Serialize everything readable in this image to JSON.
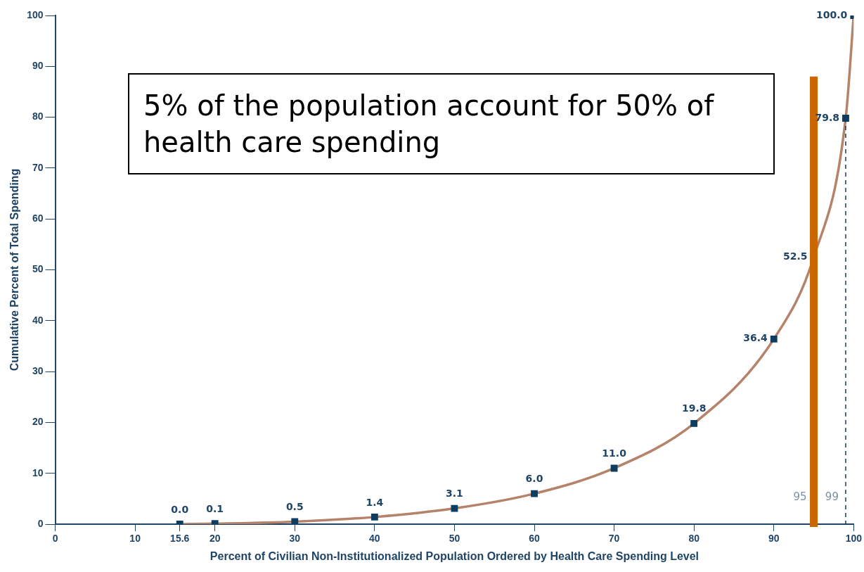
{
  "chart_data": {
    "type": "line",
    "xlabel": "Percent of Civilian Non-Institutionalized Population Ordered by Health Care Spending Level",
    "ylabel": "Cumulative Percent of Total Spending",
    "x": [
      15.6,
      20,
      30,
      40,
      50,
      60,
      70,
      80,
      90,
      95,
      99,
      100
    ],
    "series": [
      {
        "color": "#b5826a",
        "values": [
          0,
          0.1,
          0.5,
          1.4,
          3.1,
          6,
          11,
          19.8,
          36.4,
          52.5,
          79.8,
          100
        ],
        "value_labels": [
          "0.0",
          "0.1",
          "0.5",
          "1.4",
          "3.1",
          "6.0",
          "11.0",
          "19.8",
          "36.4",
          "52.5",
          "79.8",
          "100.0"
        ]
      }
    ],
    "xlim": [
      0,
      100
    ],
    "ylim": [
      0,
      100
    ],
    "xticks": [
      0,
      10,
      15.6,
      20,
      30,
      40,
      50,
      60,
      70,
      80,
      90,
      100
    ],
    "yticks": [
      0,
      10,
      20,
      30,
      40,
      50,
      60,
      70,
      80,
      90,
      100
    ],
    "grid": false,
    "legend": false,
    "marker": "square",
    "line_style": "solid",
    "ref_lines": [
      {
        "axis": "x",
        "value": 95,
        "label": "95",
        "color": "#cc6600"
      },
      {
        "axis": "x",
        "value": 99,
        "label": "99",
        "color": "#1a3a55",
        "line_style": "dashed"
      }
    ],
    "annotations": [
      "5% of the population account for 50% of health care spending"
    ]
  }
}
